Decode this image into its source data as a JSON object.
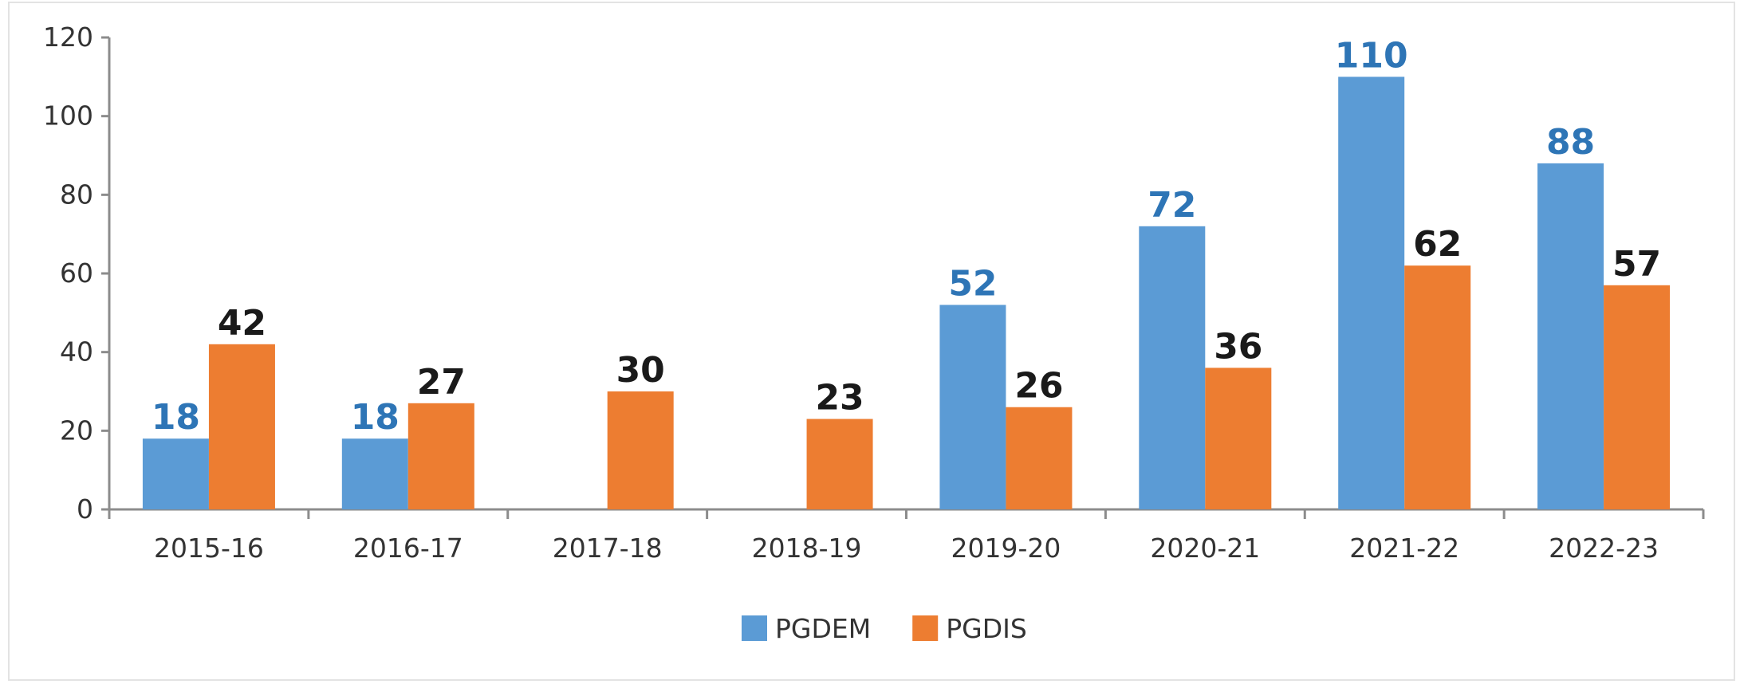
{
  "chart_data": {
    "type": "bar",
    "title": "",
    "xlabel": "",
    "ylabel": "",
    "categories": [
      "2015-16",
      "2016-17",
      "2017-18",
      "2018-19",
      "2019-20",
      "2020-21",
      "2021-22",
      "2022-23"
    ],
    "series": [
      {
        "name": "PGDEM",
        "color": "#5b9bd5",
        "label_color": "#2e75b6",
        "values": [
          18,
          18,
          null,
          null,
          52,
          72,
          110,
          88
        ]
      },
      {
        "name": "PGDIS",
        "color": "#ed7d31",
        "label_color": "#1a1a1a",
        "values": [
          42,
          27,
          30,
          23,
          26,
          36,
          62,
          57
        ]
      }
    ],
    "ylim": [
      0,
      120
    ],
    "yticks": [
      0,
      20,
      40,
      60,
      80,
      100,
      120
    ],
    "grid": false,
    "legend_position": "bottom"
  }
}
